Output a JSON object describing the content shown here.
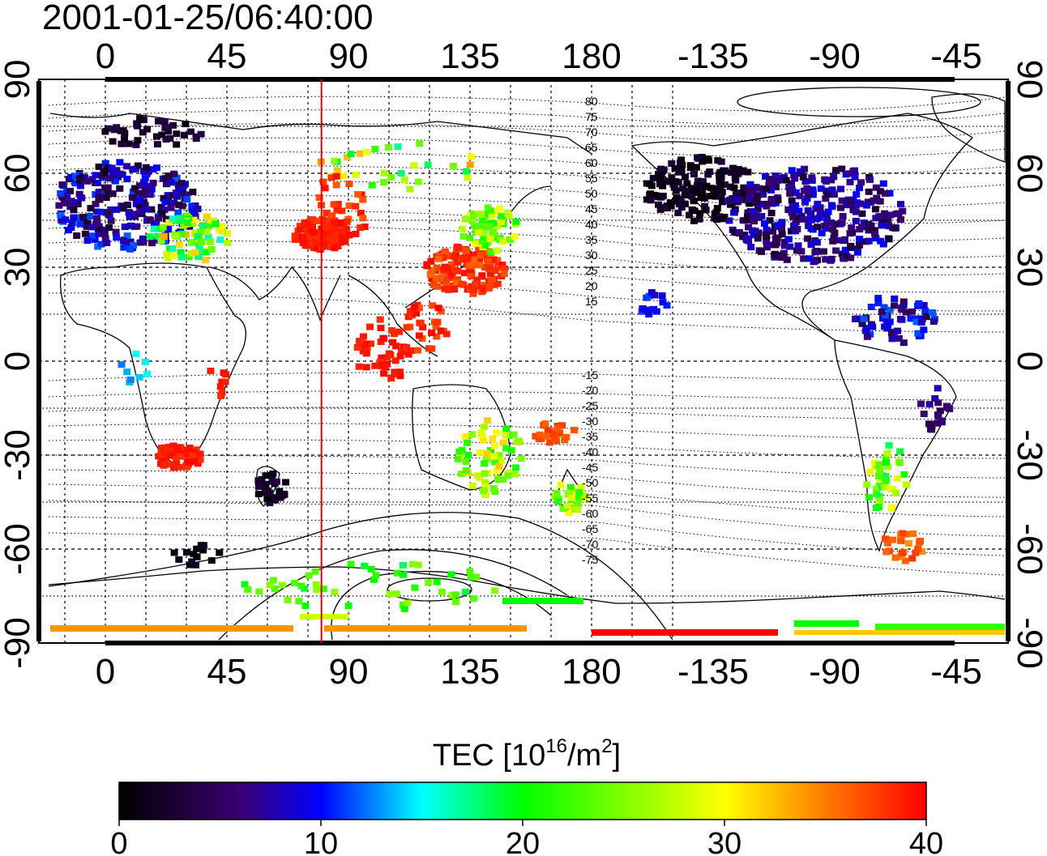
{
  "timestamp": "2001-01-25/06:40:00",
  "map": {
    "lon_ticks": [
      "0",
      "45",
      "90",
      "135",
      "180",
      "-135",
      "-90",
      "-45"
    ],
    "lat_ticks": [
      "90",
      "60",
      "30",
      "0",
      "-30",
      "-60",
      "-90"
    ],
    "contour_labels_north": [
      "80",
      "75",
      "70",
      "65",
      "60",
      "55",
      "50",
      "45",
      "40",
      "35",
      "30",
      "25",
      "20",
      "15"
    ],
    "contour_labels_south": [
      "-15",
      "-20",
      "-25",
      "-30",
      "-35",
      "-40",
      "-45",
      "-50",
      "-55",
      "-60",
      "-65",
      "-70",
      "-75"
    ],
    "marker_longitude_deg": 80,
    "marker_color": "#e00000"
  },
  "colorbar": {
    "title_main": "TEC  [10",
    "title_sup1": "16",
    "title_mid": "/m",
    "title_sup2": "2",
    "title_end": "]",
    "min": 0,
    "max": 40,
    "tick_labels": [
      "0",
      "10",
      "20",
      "30",
      "40"
    ],
    "stops": [
      "#000000",
      "#3a0070",
      "#0000ff",
      "#00ffff",
      "#00ff00",
      "#ffff00",
      "#ff8000",
      "#ff0000"
    ]
  }
}
